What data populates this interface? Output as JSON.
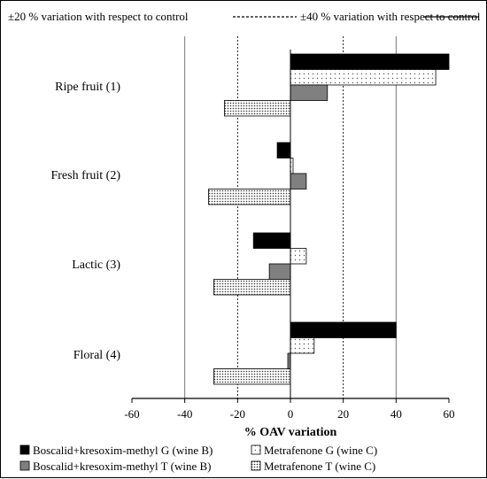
{
  "chart_data": {
    "type": "bar",
    "orientation": "horizontal",
    "categories": [
      "Ripe fruit (1)",
      "Fresh fruit  (2)",
      "Lactic (3)",
      "Floral (4)"
    ],
    "series": [
      {
        "name": "Boscalid+kresoxim-methyl G (wine B)",
        "values": [
          60,
          -5,
          -14,
          40
        ],
        "color": "#000000",
        "pattern": "solid"
      },
      {
        "name": "Metrafenone G (wine C)",
        "values": [
          55,
          1,
          6,
          9
        ],
        "color": "#ffffff",
        "pattern": "dots"
      },
      {
        "name": "Boscalid+kresoxim-methyl T (wine B)",
        "values": [
          14,
          6,
          -8,
          -1
        ],
        "color": "#808080",
        "pattern": "solid"
      },
      {
        "name": "Metrafenone T (wine C)",
        "values": [
          -25,
          -31,
          -29,
          -29
        ],
        "color": "#ffffff",
        "pattern": "dense-dots"
      }
    ],
    "xlabel": "% OAV variation",
    "xlim": [
      -60,
      60
    ],
    "xticks": [
      "-60",
      "-40",
      "-20",
      "0",
      "20",
      "40",
      "60"
    ],
    "reference_lines": [
      {
        "label": "±20 % variation with respect to control",
        "style": "dotted",
        "values": [
          -20,
          20
        ]
      },
      {
        "label": "±40 % variation with respect to control",
        "style": "solid",
        "values": [
          -40,
          40
        ]
      }
    ],
    "legend_position": "bottom"
  }
}
